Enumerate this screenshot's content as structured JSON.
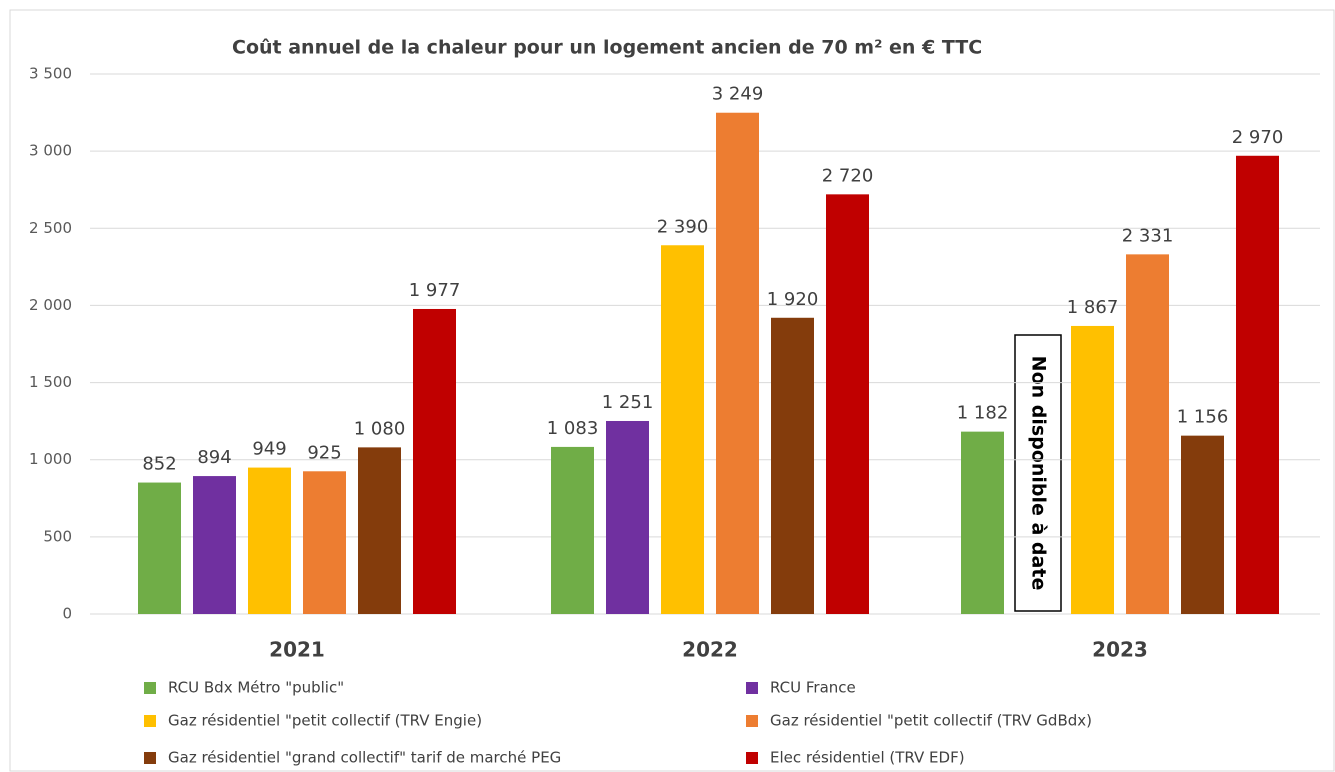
{
  "chart_data": {
    "type": "bar",
    "title": "Coût annuel de la chaleur pour un logement ancien de 70 m² en € TTC",
    "categories": [
      "2021",
      "2022",
      "2023"
    ],
    "series": [
      {
        "name": "RCU Bdx Métro \"public\"",
        "color": "#70ad47",
        "values": [
          852,
          1083,
          1182
        ],
        "value_labels": [
          "852",
          "1 083",
          "1 182"
        ]
      },
      {
        "name": "RCU France",
        "color": "#7030a0",
        "values": [
          894,
          1251,
          null
        ],
        "value_labels": [
          "894",
          "1 251",
          null
        ]
      },
      {
        "name": "Gaz résidentiel \"petit collectif (TRV Engie)",
        "color": "#ffc000",
        "values": [
          949,
          2390,
          1867
        ],
        "value_labels": [
          "949",
          "2 390",
          "1 867"
        ]
      },
      {
        "name": "Gaz résidentiel \"petit collectif (TRV GdBdx)",
        "color": "#ed7d31",
        "values": [
          925,
          3249,
          2331
        ],
        "value_labels": [
          "925",
          "3 249",
          "2 331"
        ]
      },
      {
        "name": "Gaz résidentiel \"grand collectif\" tarif de marché PEG",
        "color": "#843c0c",
        "values": [
          1080,
          1920,
          1156
        ],
        "value_labels": [
          "1 080",
          "1 920",
          "1 156"
        ]
      },
      {
        "name": "Elec résidentiel (TRV EDF)",
        "color": "#c00000",
        "values": [
          1977,
          2720,
          2970
        ],
        "value_labels": [
          "1 977",
          "2 720",
          "2 970"
        ]
      }
    ],
    "annotation": "Non disponible à date",
    "ylim": [
      0,
      3500
    ],
    "yticks": [
      0,
      500,
      {
        "value": 1000,
        "label": "1 000"
      },
      {
        "value": 1500,
        "label": "1 500"
      },
      {
        "value": 2000,
        "label": "2 000"
      },
      {
        "value": 2500,
        "label": "2 500"
      },
      {
        "value": 3000,
        "label": "3 000"
      },
      {
        "value": 3500,
        "label": "3 500"
      }
    ],
    "grid": true
  }
}
